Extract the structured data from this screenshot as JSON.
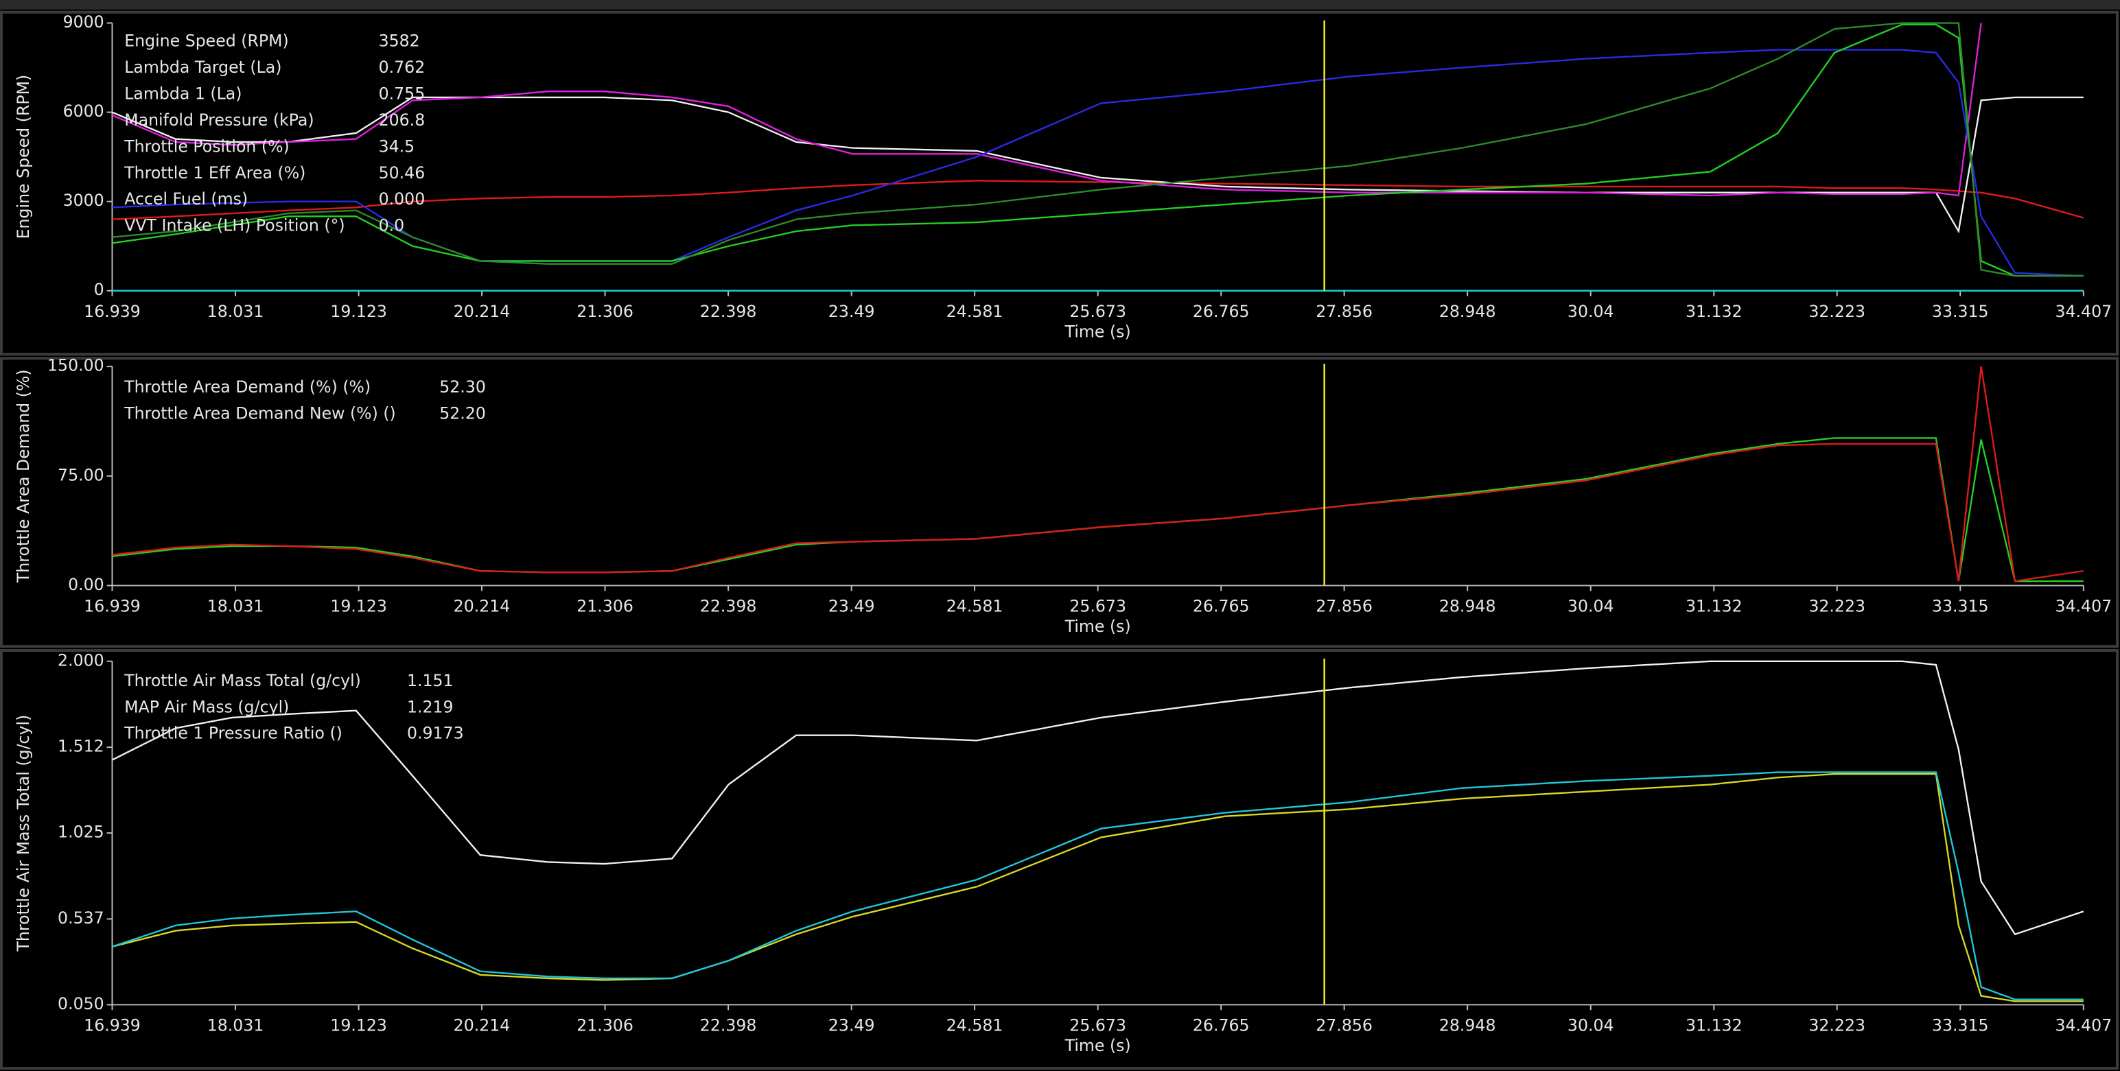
{
  "chart_data": [
    {
      "type": "line",
      "ylabel": "Engine Speed (RPM)",
      "xlabel": "Time (s)",
      "x": [
        16.939,
        17.5,
        18.0,
        18.5,
        19.1,
        19.6,
        20.2,
        20.8,
        21.3,
        21.9,
        22.4,
        23.0,
        23.5,
        24.6,
        25.7,
        26.8,
        27.9,
        28.9,
        30.0,
        31.1,
        31.7,
        32.2,
        32.8,
        33.1,
        33.3,
        33.5,
        33.8,
        34.407
      ],
      "xlim": [
        16.939,
        34.407
      ],
      "xticks": [
        16.939,
        18.031,
        19.123,
        20.214,
        21.306,
        22.398,
        23.49,
        24.581,
        25.673,
        26.765,
        27.856,
        28.948,
        30.04,
        31.132,
        32.223,
        33.315,
        34.407
      ],
      "ylim": [
        0,
        9000
      ],
      "yticks": [
        0,
        3000,
        6000,
        9000
      ],
      "cursor_x": 27.68,
      "series": [
        {
          "name": "Engine Speed (RPM)",
          "color": "#e01a1a",
          "readout": "3582",
          "values": [
            2400,
            2500,
            2600,
            2700,
            2800,
            3000,
            3100,
            3150,
            3150,
            3200,
            3300,
            3450,
            3550,
            3700,
            3650,
            3600,
            3550,
            3500,
            3500,
            3500,
            3500,
            3450,
            3450,
            3400,
            3350,
            3300,
            3100,
            2450
          ]
        },
        {
          "name": "Lambda Target (La)",
          "color": "#f0f0f0",
          "readout": "0.762",
          "values": [
            6000,
            5100,
            5000,
            5000,
            5300,
            6500,
            6500,
            6500,
            6500,
            6400,
            6000,
            5000,
            4800,
            4700,
            3800,
            3500,
            3400,
            3350,
            3300,
            3300,
            3300,
            3300,
            3300,
            3300,
            2000,
            6400,
            6500,
            6500
          ]
        },
        {
          "name": "Lambda 1 (La)",
          "color": "#e020e0",
          "readout": "0.755",
          "values": [
            5900,
            5000,
            4900,
            5000,
            5100,
            6400,
            6500,
            6700,
            6700,
            6500,
            6200,
            5100,
            4600,
            4600,
            3700,
            3400,
            3300,
            3300,
            3300,
            3200,
            3300,
            3250,
            3250,
            3300,
            3200,
            9000,
            null,
            null
          ]
        },
        {
          "name": "Manifold Pressure (kPa)",
          "color": "#2a2ae8",
          "readout": "206.8",
          "values": [
            2800,
            2900,
            2950,
            3000,
            3000,
            1800,
            1000,
            1000,
            1000,
            1000,
            1800,
            2700,
            3200,
            4500,
            6300,
            6700,
            7200,
            7500,
            7800,
            8000,
            8100,
            8100,
            8100,
            8000,
            7000,
            2500,
            600,
            500
          ]
        },
        {
          "name": "Throttle Position (%)",
          "color": "#22d022",
          "readout": "34.5",
          "values": [
            1600,
            1900,
            2200,
            2500,
            2500,
            1500,
            1000,
            1000,
            1000,
            1000,
            1500,
            2000,
            2200,
            2300,
            2600,
            2900,
            3200,
            3400,
            3600,
            4000,
            5300,
            8000,
            8950,
            8950,
            8500,
            1000,
            500,
            500
          ]
        },
        {
          "name": "Throttle 1 Eff Area (%)",
          "color": "#2e8a2e",
          "readout": "50.46",
          "values": [
            1800,
            2000,
            2300,
            2600,
            2700,
            1800,
            1000,
            900,
            900,
            900,
            1700,
            2400,
            2600,
            2900,
            3400,
            3800,
            4200,
            4800,
            5600,
            6800,
            7800,
            8800,
            9000,
            9000,
            9000,
            700,
            500,
            500
          ]
        },
        {
          "name": "Accel Fuel (ms)",
          "color": "#c8c81e",
          "readout": "0.000",
          "values": [
            0,
            0,
            0,
            0,
            0,
            0,
            0,
            0,
            0,
            0,
            0,
            0,
            0,
            0,
            0,
            0,
            0,
            0,
            0,
            0,
            0,
            0,
            0,
            0,
            0,
            0,
            0,
            0
          ]
        },
        {
          "name": "VVT Intake (LH) Position (°)",
          "color": "#20c8d8",
          "readout": "0.0",
          "values": [
            0,
            0,
            0,
            0,
            0,
            0,
            0,
            0,
            0,
            0,
            0,
            0,
            0,
            0,
            0,
            0,
            0,
            0,
            0,
            0,
            0,
            0,
            0,
            0,
            0,
            0,
            0,
            0
          ]
        }
      ]
    },
    {
      "type": "line",
      "ylabel": "Throttle Area Demand  (%)",
      "xlabel": "Time (s)",
      "x": [
        16.939,
        17.5,
        18.0,
        18.5,
        19.1,
        19.6,
        20.2,
        20.8,
        21.3,
        21.9,
        22.4,
        23.0,
        23.5,
        24.6,
        25.7,
        26.8,
        27.9,
        28.9,
        30.0,
        31.1,
        31.7,
        32.2,
        32.8,
        33.1,
        33.3,
        33.5,
        33.8,
        34.407
      ],
      "xlim": [
        16.939,
        34.407
      ],
      "xticks": [
        16.939,
        18.031,
        19.123,
        20.214,
        21.306,
        22.398,
        23.49,
        24.581,
        25.673,
        26.765,
        27.856,
        28.948,
        30.04,
        31.132,
        32.223,
        33.315,
        34.407
      ],
      "ylim": [
        0,
        150
      ],
      "yticks": [
        {
          "value": 0,
          "label": "0.00"
        },
        {
          "value": 75,
          "label": "75.00"
        },
        {
          "value": 150,
          "label": "150.00"
        }
      ],
      "cursor_x": 27.68,
      "series": [
        {
          "name": "Throttle Area Demand  (%) (%)",
          "color": "#22d022",
          "readout": "52.30",
          "values": [
            20,
            25,
            27,
            27,
            26,
            20,
            10,
            9,
            9,
            10,
            18,
            28,
            30,
            32,
            40,
            46,
            55,
            63,
            73,
            90,
            97,
            101,
            101,
            101,
            3,
            100,
            3,
            3
          ]
        },
        {
          "name": "Throttle Area Demand New (%) ()",
          "color": "#e01a1a",
          "readout": "52.20",
          "values": [
            21,
            26,
            28,
            27,
            25,
            19,
            10,
            9,
            9,
            10,
            19,
            29,
            30,
            32,
            40,
            46,
            55,
            62,
            72,
            89,
            96,
            97,
            97,
            97,
            3,
            150,
            3,
            10
          ]
        }
      ]
    },
    {
      "type": "line",
      "ylabel": "Throttle Air Mass Total (g/cyl)",
      "xlabel": "Time (s)",
      "x": [
        16.939,
        17.5,
        18.0,
        18.5,
        19.1,
        19.6,
        20.2,
        20.8,
        21.3,
        21.9,
        22.4,
        23.0,
        23.5,
        24.6,
        25.7,
        26.8,
        27.9,
        28.9,
        30.0,
        31.1,
        31.7,
        32.2,
        32.8,
        33.1,
        33.3,
        33.5,
        33.8,
        34.407
      ],
      "xlim": [
        16.939,
        34.407
      ],
      "xticks": [
        16.939,
        18.031,
        19.123,
        20.214,
        21.306,
        22.398,
        23.49,
        24.581,
        25.673,
        26.765,
        27.856,
        28.948,
        30.04,
        31.132,
        32.223,
        33.315,
        34.407
      ],
      "ylim": [
        0.05,
        2.0
      ],
      "yticks": [
        {
          "value": 0.05,
          "label": "0.050"
        },
        {
          "value": 0.537,
          "label": "0.537"
        },
        {
          "value": 1.025,
          "label": "1.025"
        },
        {
          "value": 1.512,
          "label": "1.512"
        },
        {
          "value": 2.0,
          "label": "2.000"
        }
      ],
      "cursor_x": 27.68,
      "series": [
        {
          "name": "Throttle Air Mass Total (g/cyl)",
          "color": "#d8d820",
          "readout": "1.151",
          "values": [
            0.38,
            0.47,
            0.5,
            0.51,
            0.52,
            0.37,
            0.22,
            0.2,
            0.19,
            0.2,
            0.3,
            0.45,
            0.55,
            0.72,
            1.0,
            1.12,
            1.16,
            1.22,
            1.26,
            1.3,
            1.34,
            1.36,
            1.36,
            1.36,
            0.5,
            0.1,
            0.07,
            0.07
          ]
        },
        {
          "name": "MAP Air Mass (g/cyl)",
          "color": "#20c8d8",
          "readout": "1.219",
          "values": [
            0.38,
            0.5,
            0.54,
            0.56,
            0.58,
            0.42,
            0.24,
            0.21,
            0.2,
            0.2,
            0.3,
            0.47,
            0.58,
            0.76,
            1.05,
            1.14,
            1.2,
            1.28,
            1.32,
            1.35,
            1.37,
            1.37,
            1.37,
            1.37,
            0.8,
            0.15,
            0.08,
            0.08
          ]
        },
        {
          "name": "Throttle 1 Pressure Ratio ()",
          "color": "#f0f0f0",
          "readout": "0.9173",
          "values": [
            1.44,
            1.62,
            1.68,
            1.7,
            1.72,
            1.35,
            0.9,
            0.86,
            0.85,
            0.88,
            1.3,
            1.58,
            1.58,
            1.55,
            1.68,
            1.77,
            1.85,
            1.91,
            1.96,
            2.0,
            2.0,
            2.0,
            2.0,
            1.98,
            1.5,
            0.75,
            0.45,
            0.58
          ]
        }
      ]
    }
  ]
}
